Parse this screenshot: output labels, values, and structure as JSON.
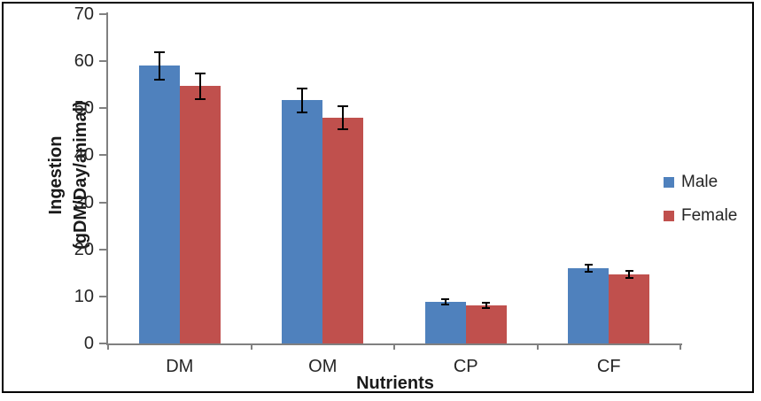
{
  "window": {
    "background": "#ffffff",
    "border_color": "#000000"
  },
  "chart_data": {
    "type": "bar",
    "title": "",
    "xlabel": "Nutrients",
    "ylabel": "Ingestion (gDM/Day/animal)",
    "categories": [
      "DM",
      "OM",
      "CP",
      "CF"
    ],
    "series": [
      {
        "name": "Male",
        "color": "#4F81BD",
        "values": [
          59.0,
          51.7,
          8.8,
          16.0
        ],
        "errors": [
          3.0,
          2.5,
          0.6,
          0.8
        ]
      },
      {
        "name": "Female",
        "color": "#C0504D",
        "values": [
          54.7,
          48.0,
          8.1,
          14.7
        ],
        "errors": [
          2.7,
          2.4,
          0.5,
          0.7
        ]
      }
    ],
    "ylim": [
      0,
      70
    ],
    "yticks": [
      0,
      10,
      20,
      30,
      40,
      50,
      60,
      70
    ],
    "grid": false,
    "error_bars": true,
    "errorbar_color": "#000000",
    "axis_color": "#808080",
    "legend_position": "right"
  }
}
